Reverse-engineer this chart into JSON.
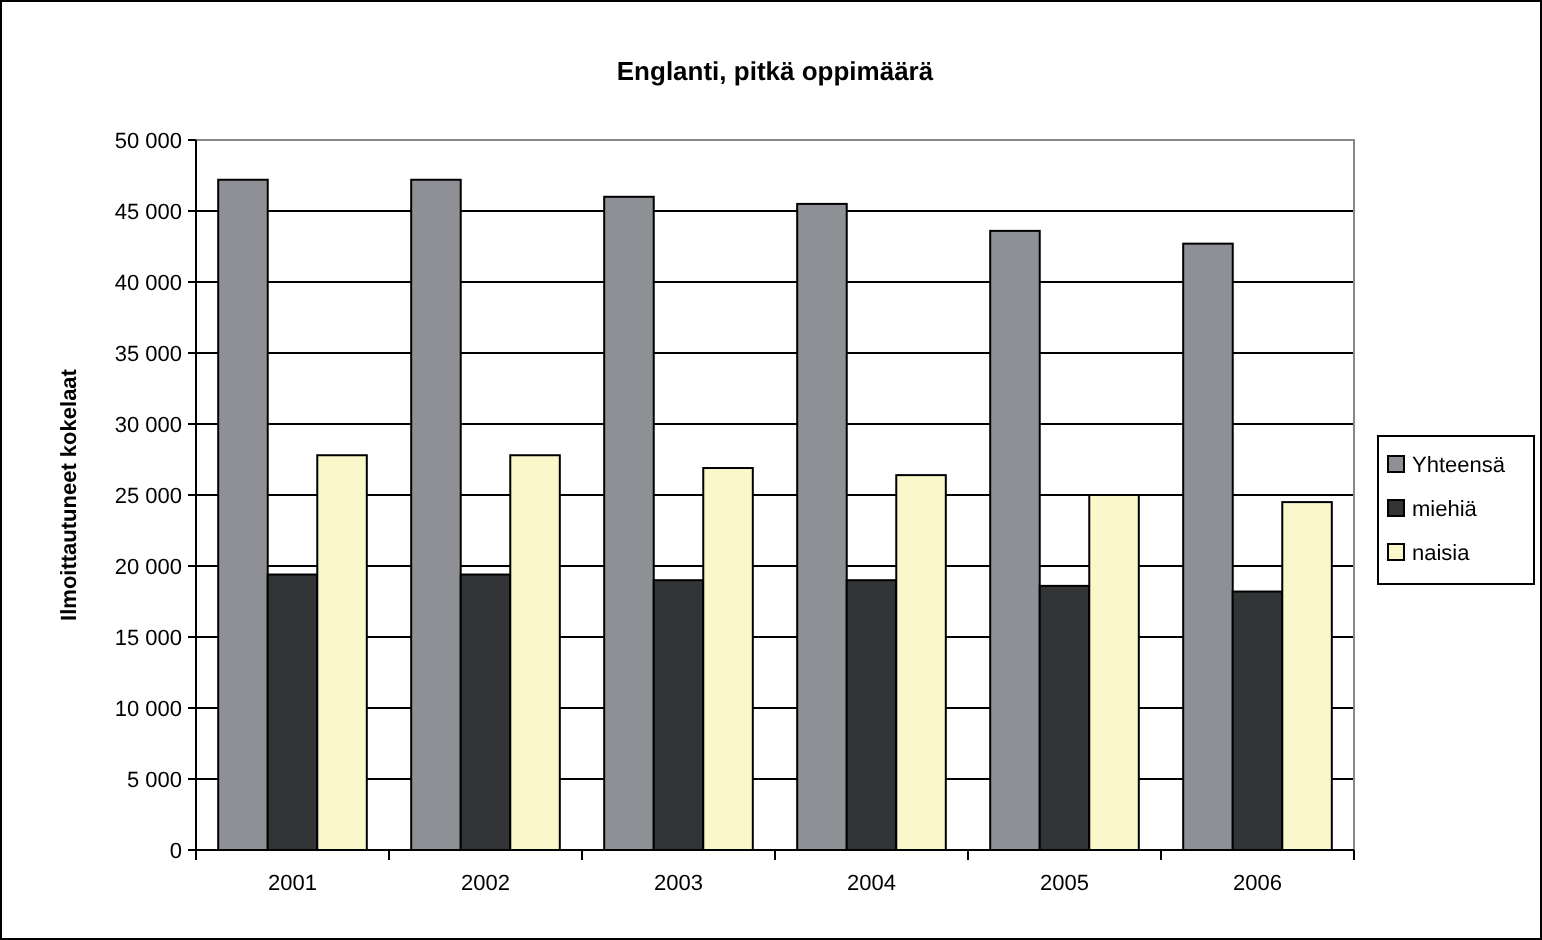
{
  "chart_data": {
    "type": "bar",
    "title": "Englanti, pitkä oppimäärä",
    "ylabel": "Ilmoittautuneet kokelaat",
    "categories": [
      "2001",
      "2002",
      "2003",
      "2004",
      "2005",
      "2006"
    ],
    "series": [
      {
        "name": "Yhteensä",
        "color": "#8e9095",
        "values": [
          47200,
          47200,
          46000,
          45500,
          43600,
          42700
        ]
      },
      {
        "name": "miehiä",
        "color": "#333436",
        "values": [
          19400,
          19400,
          19000,
          19000,
          18600,
          18200
        ]
      },
      {
        "name": "naisia",
        "color": "#faf7cb",
        "values": [
          27800,
          27800,
          26900,
          26400,
          25000,
          24500
        ]
      }
    ],
    "ylim": [
      0,
      50000
    ],
    "yticks": [
      {
        "value": 0,
        "label": "0"
      },
      {
        "value": 5000,
        "label": "5 000"
      },
      {
        "value": 10000,
        "label": "10 000"
      },
      {
        "value": 15000,
        "label": "15 000"
      },
      {
        "value": 20000,
        "label": "20 000"
      },
      {
        "value": 25000,
        "label": "25 000"
      },
      {
        "value": 30000,
        "label": "30 000"
      },
      {
        "value": 35000,
        "label": "35 000"
      },
      {
        "value": 40000,
        "label": "40 000"
      },
      {
        "value": 45000,
        "label": "45 000"
      },
      {
        "value": 50000,
        "label": "50 000"
      }
    ],
    "grid": "y",
    "legend": "right"
  }
}
